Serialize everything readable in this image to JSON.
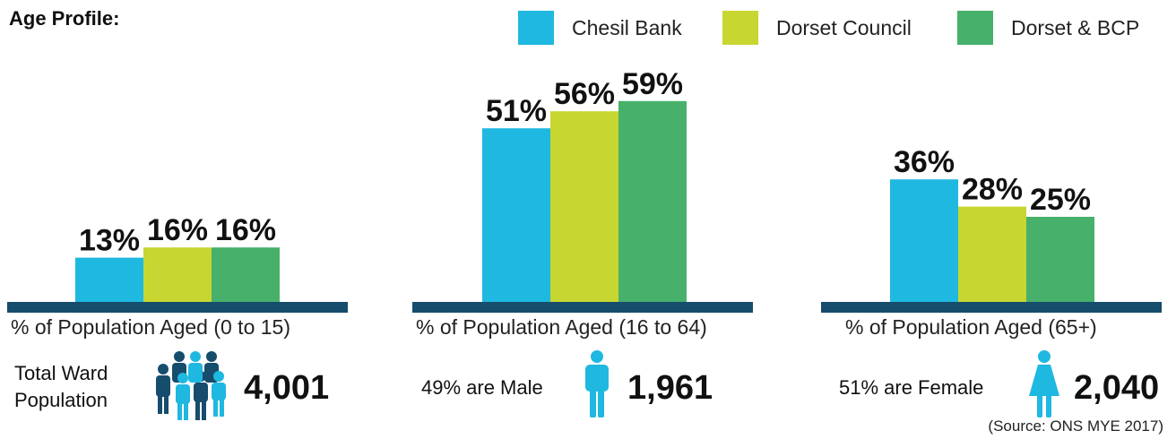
{
  "title": "Age Profile:",
  "legend": [
    {
      "label": "Chesil Bank",
      "color": "#1fb8e0"
    },
    {
      "label": "Dorset Council",
      "color": "#c8d631"
    },
    {
      "label": "Dorset & BCP",
      "color": "#47b06b"
    }
  ],
  "colors": {
    "baseline": "#164c6c",
    "chesil": "#1fb8e0",
    "dorset_council": "#c8d631",
    "dorset_bcp": "#47b06b"
  },
  "chart_data": [
    {
      "type": "bar",
      "xlabel": "% of Population Aged (0 to 15)",
      "series": [
        {
          "name": "Chesil Bank",
          "values": [
            13
          ]
        },
        {
          "name": "Dorset Council",
          "values": [
            16
          ]
        },
        {
          "name": "Dorset & BCP",
          "values": [
            16
          ]
        }
      ],
      "data_labels": [
        "13%",
        "16%",
        "16%"
      ],
      "ylim": [
        0,
        100
      ]
    },
    {
      "type": "bar",
      "xlabel": "% of Population Aged (16 to 64)",
      "series": [
        {
          "name": "Chesil Bank",
          "values": [
            51
          ]
        },
        {
          "name": "Dorset Council",
          "values": [
            56
          ]
        },
        {
          "name": "Dorset & BCP",
          "values": [
            59
          ]
        }
      ],
      "data_labels": [
        "51%",
        "56%",
        "59%"
      ],
      "ylim": [
        0,
        100
      ]
    },
    {
      "type": "bar",
      "xlabel": "% of Population Aged (65+)",
      "series": [
        {
          "name": "Chesil Bank",
          "values": [
            36
          ]
        },
        {
          "name": "Dorset Council",
          "values": [
            28
          ]
        },
        {
          "name": "Dorset & BCP",
          "values": [
            25
          ]
        }
      ],
      "data_labels": [
        "36%",
        "28%",
        "25%"
      ],
      "ylim": [
        0,
        100
      ]
    }
  ],
  "stats": {
    "total_label_line1": "Total Ward",
    "total_label_line2": "Population",
    "total_value": "4,001",
    "male_label": "49% are Male",
    "male_value": "1,961",
    "female_label": "51% are Female",
    "female_value": "2,040",
    "icons": [
      "people-group-icon",
      "male-person-icon",
      "female-person-icon"
    ]
  },
  "source": "(Source: ONS MYE 2017)"
}
